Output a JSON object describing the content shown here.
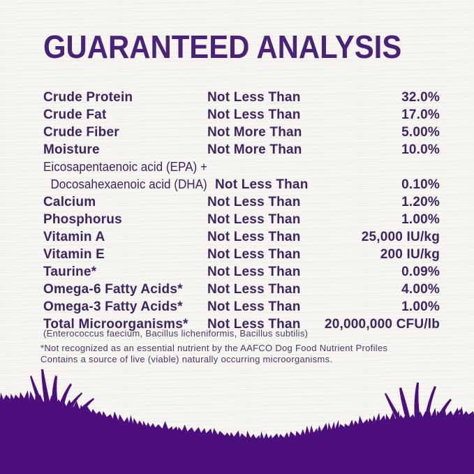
{
  "header": {
    "title": "GUARANTEED ANALYSIS"
  },
  "analysis_table": {
    "rows": [
      {
        "name": "Crude Protein",
        "condition": "Not Less Than",
        "value": "32.0%"
      },
      {
        "name": "Crude Fat",
        "condition": "Not Less Than",
        "value": "17.0%"
      },
      {
        "name": "Crude Fiber",
        "condition": "Not More Than",
        "value": "5.00%"
      },
      {
        "name": "Moisture",
        "condition": "Not More Than",
        "value": "10.0%"
      },
      {
        "name_lines": [
          "Eicosapentaenoic acid (EPA) +",
          "Docosahexaenoic acid (DHA)"
        ],
        "condition": "Not Less Than",
        "value": "0.10%"
      },
      {
        "name": "Calcium",
        "condition": "Not Less Than",
        "value": "1.20%"
      },
      {
        "name": "Phosphorus",
        "condition": "Not Less Than",
        "value": "1.00%"
      },
      {
        "name": "Vitamin A",
        "condition": "Not Less Than",
        "value": "25,000 IU/kg"
      },
      {
        "name": "Vitamin E",
        "condition": "Not Less Than",
        "value": "200 IU/kg"
      },
      {
        "name": "Taurine*",
        "condition": "Not Less Than",
        "value": "0.09%"
      },
      {
        "name": "Omega-6 Fatty Acids*",
        "condition": "Not Less Than",
        "value": "4.00%"
      },
      {
        "name": "Omega-3 Fatty Acids*",
        "condition": "Not Less Than",
        "value": "1.00%"
      },
      {
        "name": "Total Microorganisms*",
        "condition": "Not Less Than",
        "value": "20,000,000 CFU/lb"
      }
    ],
    "microorganism_note": "(Enterococcus faecium, Bacillus licheniformis, Bacillus subtilis)",
    "footnotes": [
      "*Not recognized as an essential nutrient by the AAFCO Dog Food Nutrient Profiles",
      "Contains a source of live (viable) naturally occurring microorganisms."
    ]
  },
  "graphics": {
    "grass_silhouette": "grass-silhouette"
  },
  "colors": {
    "title_purple": "#4a2277",
    "text_purple": "#3e2462",
    "fine_print_purple": "#4a3763",
    "grass_purple": "#4d0f7b",
    "background_cream": "#f7f6f2"
  }
}
